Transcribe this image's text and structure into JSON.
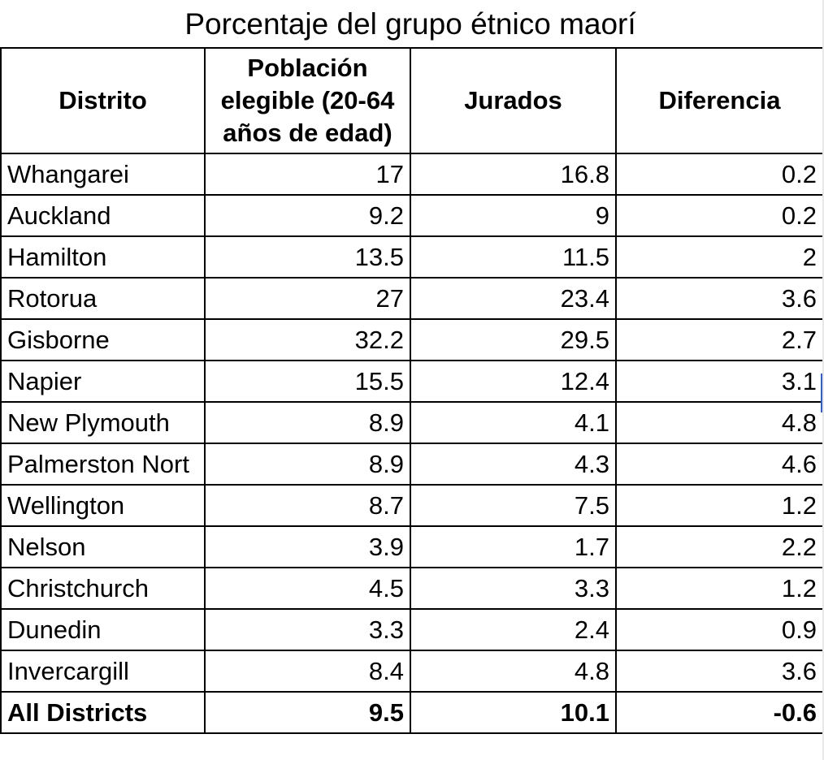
{
  "title": "Porcentaje del grupo étnico maorí",
  "headers": [
    "Distrito",
    "Población elegible (20-64 años de edad)",
    "Jurados",
    "Diferencia"
  ],
  "rows": [
    {
      "district": "Whangarei",
      "population": "17",
      "jurors": "16.8",
      "difference": "0.2"
    },
    {
      "district": "Auckland",
      "population": "9.2",
      "jurors": "9",
      "difference": "0.2"
    },
    {
      "district": "Hamilton",
      "population": "13.5",
      "jurors": "11.5",
      "difference": "2"
    },
    {
      "district": "Rotorua",
      "population": "27",
      "jurors": "23.4",
      "difference": "3.6"
    },
    {
      "district": "Gisborne",
      "population": "32.2",
      "jurors": "29.5",
      "difference": "2.7"
    },
    {
      "district": "Napier",
      "population": "15.5",
      "jurors": "12.4",
      "difference": "3.1"
    },
    {
      "district": "New Plymouth",
      "population": "8.9",
      "jurors": "4.1",
      "difference": "4.8"
    },
    {
      "district": "Palmerston Nort",
      "population": "8.9",
      "jurors": "4.3",
      "difference": "4.6"
    },
    {
      "district": "Wellington",
      "population": "8.7",
      "jurors": "7.5",
      "difference": "1.2"
    },
    {
      "district": "Nelson",
      "population": "3.9",
      "jurors": "1.7",
      "difference": "2.2"
    },
    {
      "district": "Christchurch",
      "population": "4.5",
      "jurors": "3.3",
      "difference": "1.2"
    },
    {
      "district": "Dunedin",
      "population": "3.3",
      "jurors": "2.4",
      "difference": "0.9"
    },
    {
      "district": "Invercargill",
      "population": "8.4",
      "jurors": "4.8",
      "difference": "3.6"
    }
  ],
  "total": {
    "district": "All Districts",
    "population": "9.5",
    "jurors": "10.1",
    "difference": "-0.6"
  }
}
